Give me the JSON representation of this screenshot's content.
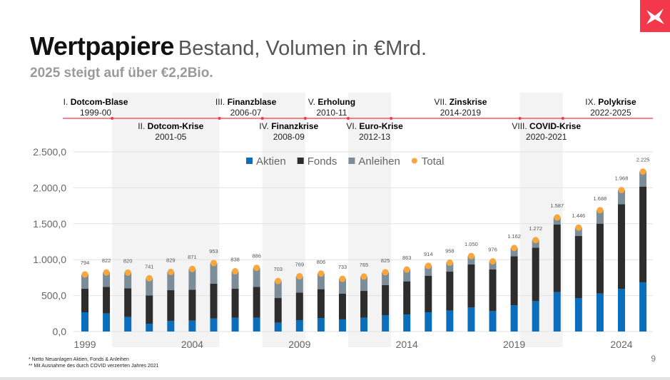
{
  "header": {
    "title_bold": "Wertpapiere",
    "title_light": "Bestand, Volumen in €Mrd.",
    "subtitle": "2025 steigt auf über €2,2Bio."
  },
  "periods": [
    {
      "num": "I.",
      "name": "Dotcom-Blase",
      "years": "1999-00",
      "start": 1999,
      "end": 2000,
      "pos": "above",
      "shaded": false
    },
    {
      "num": "II.",
      "name": "Dotcom-Krise",
      "years": "2001-05",
      "start": 2001,
      "end": 2005,
      "pos": "below",
      "shaded": true
    },
    {
      "num": "III.",
      "name": "Finanzblase",
      "years": "2006-07",
      "start": 2006,
      "end": 2007,
      "pos": "above",
      "shaded": false
    },
    {
      "num": "IV.",
      "name": "Finanzkrise",
      "years": "2008-09",
      "start": 2008,
      "end": 2009,
      "pos": "below",
      "shaded": true
    },
    {
      "num": "V.",
      "name": "Erholung",
      "years": "2010-11",
      "start": 2010,
      "end": 2011,
      "pos": "above",
      "shaded": false
    },
    {
      "num": "VI.",
      "name": "Euro-Krise",
      "years": "2012-13",
      "start": 2012,
      "end": 2013,
      "pos": "below",
      "shaded": true
    },
    {
      "num": "VII.",
      "name": "Zinskrise",
      "years": "2014-2019",
      "start": 2014,
      "end": 2019,
      "pos": "above",
      "shaded": false
    },
    {
      "num": "VIII.",
      "name": "COVID-Krise",
      "years": "2020-2021",
      "start": 2020,
      "end": 2021,
      "pos": "below",
      "shaded": true
    },
    {
      "num": "IX.",
      "name": "Polykrise",
      "years": "2022-2025",
      "start": 2022,
      "end": 2025,
      "pos": "above",
      "shaded": false
    }
  ],
  "footnotes": [
    "* Netto Neuanlagen Aktien, Fonds & Anleihen",
    "** Mit Ausnahme des durch COVID verzerrten Jahres 2021"
  ],
  "page_number": "9",
  "colors": {
    "aktien": "#0a6ebd",
    "fonds": "#2d2d2d",
    "anleihen": "#7b8d99",
    "total": "#f9a63c",
    "accent": "#f2384a",
    "band": "#f3f3f3"
  },
  "chart_data": {
    "type": "bar",
    "stacked": true,
    "x": [
      1999,
      2000,
      2001,
      2002,
      2003,
      2004,
      2005,
      2006,
      2007,
      2008,
      2009,
      2010,
      2011,
      2012,
      2013,
      2014,
      2015,
      2016,
      2017,
      2018,
      2019,
      2020,
      2021,
      2022,
      2023,
      2024,
      2025
    ],
    "x_tick_labels": [
      "1999",
      "2004",
      "2009",
      "2014",
      "2019",
      "2024"
    ],
    "y_tick_labels": [
      "0,0",
      "500,0",
      "1.000,0",
      "1.500,0",
      "2.000,0",
      "2.500,0"
    ],
    "ylim": [
      0,
      2500
    ],
    "grid": true,
    "legend_placement": "top-center",
    "series": [
      {
        "name": "Aktien",
        "values": [
          268,
          251,
          202,
          109,
          146,
          152,
          182,
          192,
          192,
          122,
          159,
          188,
          169,
          192,
          228,
          238,
          268,
          291,
          334,
          284,
          364,
          423,
          549,
          466,
          529,
          595,
          685
        ]
      },
      {
        "name": "Fonds",
        "values": [
          327,
          371,
          400,
          394,
          429,
          430,
          483,
          403,
          430,
          344,
          383,
          401,
          357,
          373,
          417,
          460,
          509,
          542,
          599,
          579,
          684,
          744,
          939,
          863,
          972,
          1177,
          1332
        ]
      },
      {
        "name": "Anleihen",
        "values": [
          199,
          200,
          218,
          238,
          254,
          289,
          288,
          243,
          264,
          237,
          227,
          217,
          207,
          200,
          180,
          165,
          137,
          125,
          117,
          113,
          114,
          105,
          99,
          117,
          187,
          196,
          208
        ]
      },
      {
        "name": "Total",
        "type": "point",
        "values": [
          794,
          822,
          820,
          741,
          829,
          871,
          953,
          838,
          886,
          703,
          769,
          806,
          733,
          765,
          825,
          863,
          914,
          958,
          1050,
          976,
          1162,
          1272,
          1587,
          1446,
          1688,
          1968,
          2225
        ]
      }
    ],
    "data_labels": [
      "794",
      "822",
      "820",
      "741",
      "829",
      "871",
      "953",
      "838",
      "886",
      "703",
      "769",
      "806",
      "733",
      "765",
      "825",
      "863",
      "914",
      "958",
      "1.050",
      "976",
      "1.162",
      "1.272",
      "1.587",
      "1.446",
      "1.688",
      "1.968",
      "2.225"
    ]
  }
}
